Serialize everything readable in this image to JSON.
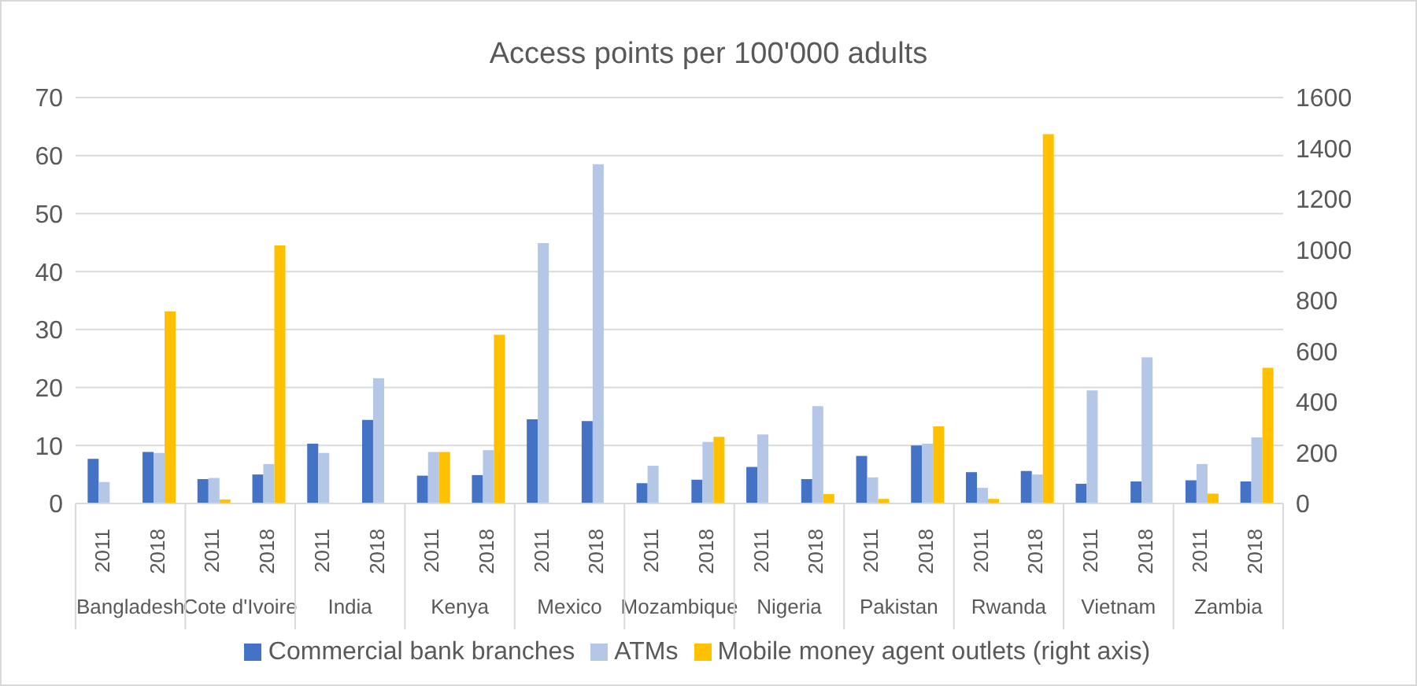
{
  "chart_data": {
    "type": "bar",
    "title": "Access points per 100'000 adults",
    "categories": [
      "2011",
      "2018",
      "2011",
      "2018",
      "2011",
      "2018",
      "2011",
      "2018",
      "2011",
      "2018",
      "2011",
      "2018",
      "2011",
      "2018",
      "2011",
      "2018",
      "2011",
      "2018",
      "2011",
      "2018",
      "2011",
      "2018"
    ],
    "annotations": [
      "Bangladesh",
      "Cote d'Ivoire",
      "India",
      "Kenya",
      "Mexico",
      "Mozambique",
      "Nigeria",
      "Pakistan",
      "Rwanda",
      "Vietnam",
      "Zambia"
    ],
    "series": [
      {
        "name": "Commercial bank branches",
        "color": "#4472c4",
        "values": [
          7.7,
          8.9,
          4.2,
          5.0,
          10.3,
          14.4,
          4.8,
          4.9,
          14.5,
          14.2,
          3.5,
          4.1,
          6.3,
          4.2,
          8.2,
          10.0,
          5.4,
          5.6,
          3.4,
          3.8,
          4.0,
          3.8
        ]
      },
      {
        "name": "ATMs",
        "color": "#b4c7e7",
        "values": [
          3.7,
          8.7,
          4.4,
          6.8,
          8.7,
          21.6,
          8.9,
          9.2,
          44.9,
          58.5,
          6.5,
          10.6,
          11.9,
          16.8,
          4.5,
          10.3,
          2.7,
          5.0,
          19.5,
          25.2,
          6.8,
          11.4
        ]
      },
      {
        "name": "Mobile money agent outlets (right axis)",
        "color": "#ffc000",
        "axis": "y2",
        "values": [
          null,
          757,
          16,
          1017,
          null,
          null,
          203,
          665,
          null,
          null,
          null,
          263,
          null,
          37,
          18,
          304,
          18,
          1456,
          null,
          null,
          39,
          535
        ]
      }
    ],
    "ylim": [
      0,
      70
    ],
    "yticks": [
      0,
      10,
      20,
      30,
      40,
      50,
      60,
      70
    ],
    "y2lim": [
      0,
      1600
    ],
    "y2ticks": [
      0,
      200,
      400,
      600,
      800,
      1000,
      1200,
      1400,
      1600
    ],
    "grid": "y",
    "legend": "bottom"
  }
}
